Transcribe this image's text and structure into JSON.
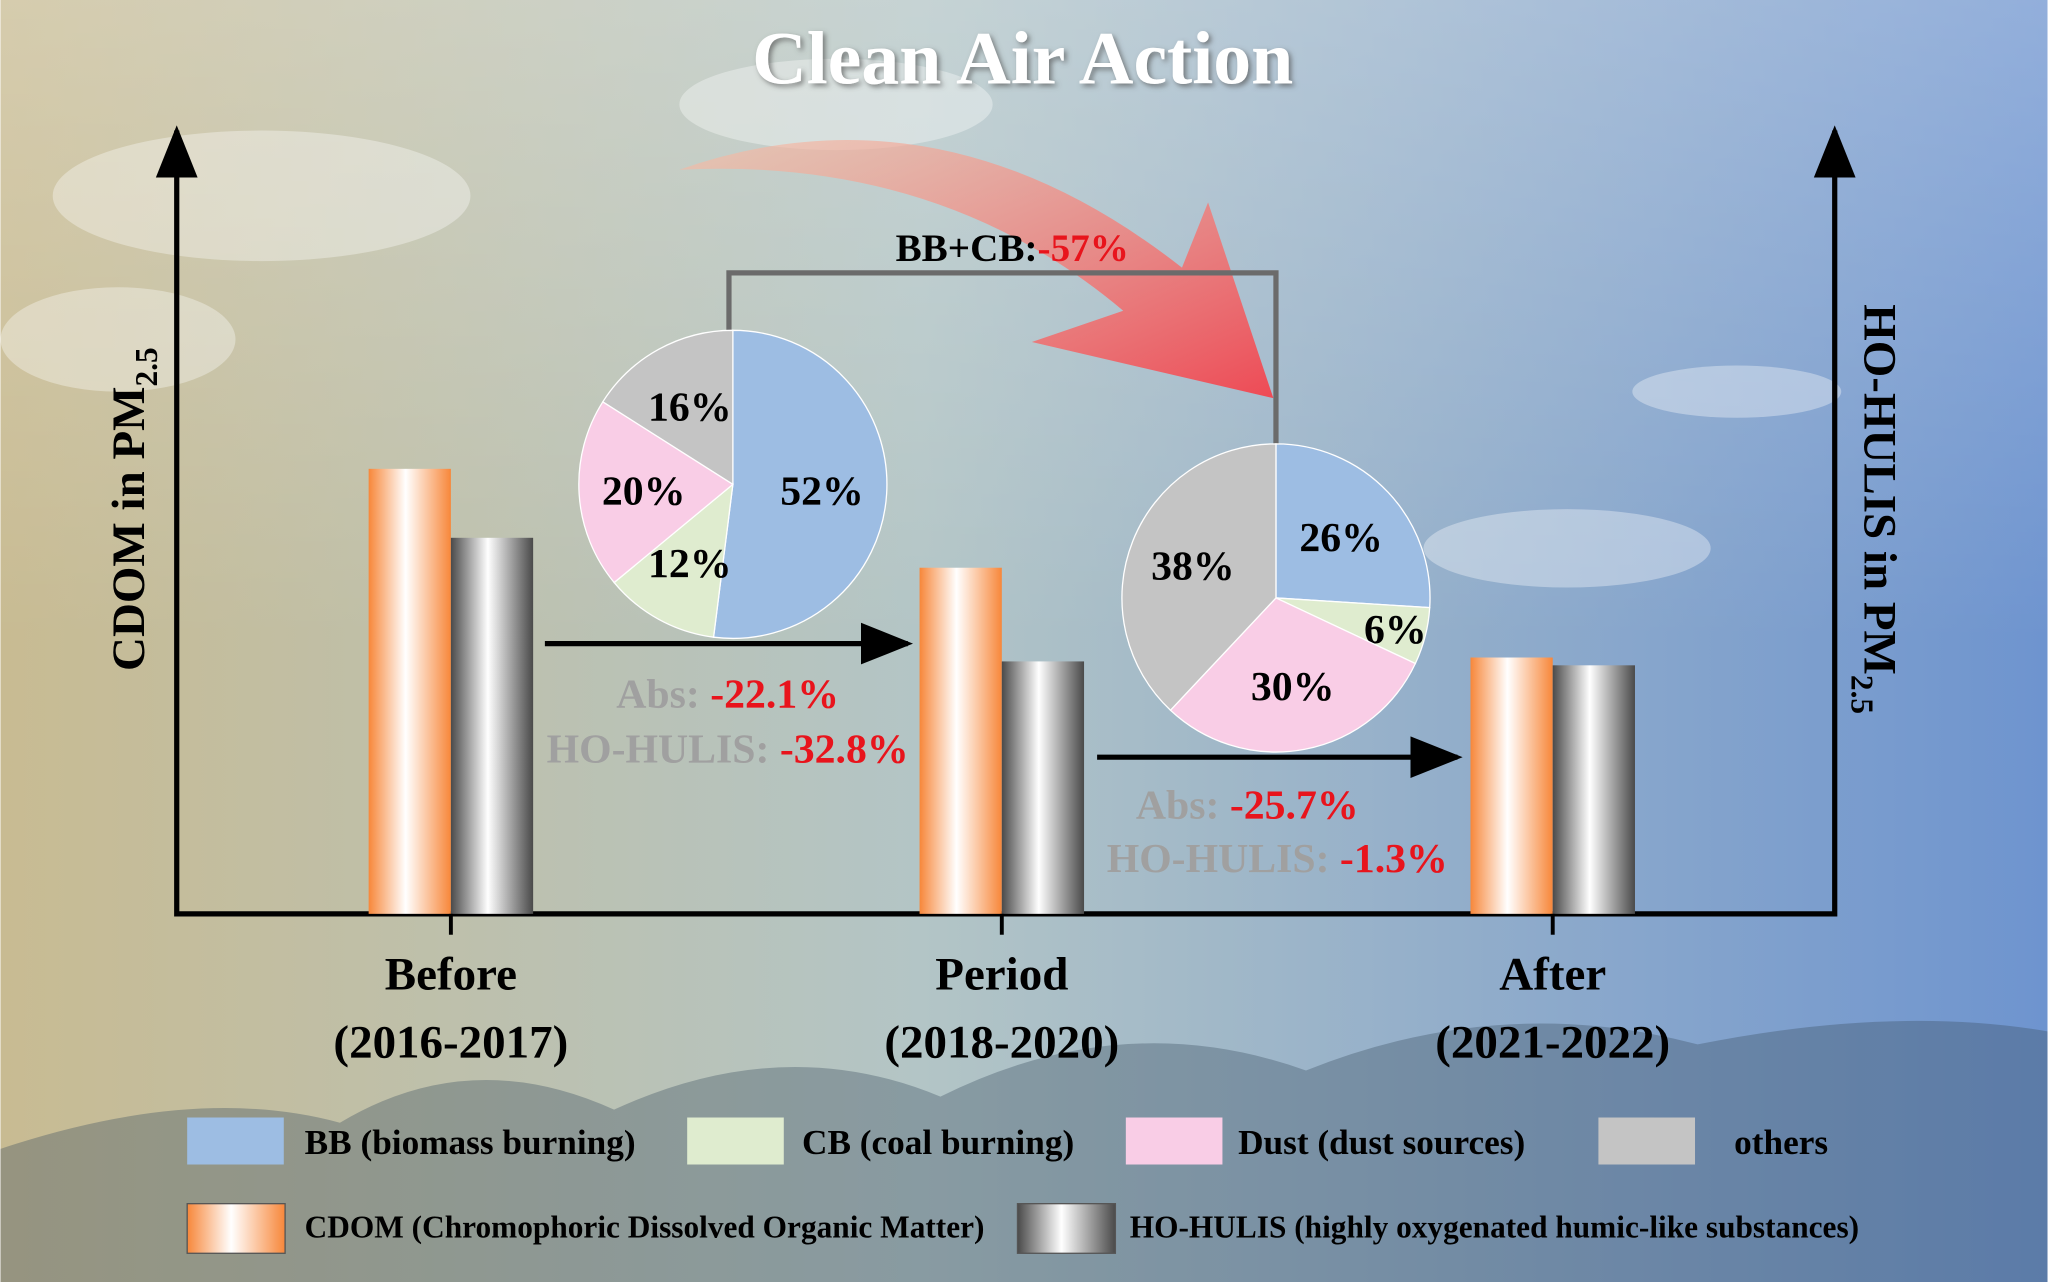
{
  "chart_data": [
    {
      "type": "bar",
      "title": "Clean Air Action",
      "categories": [
        "Before",
        "Period",
        "After"
      ],
      "category_periods": [
        "(2016-2017)",
        "(2018-2020)",
        "(2021-2022)"
      ],
      "ylabel": "CDOM in PM",
      "ylabel_sub": "2.5",
      "y2label": "HO-HULIS  in PM",
      "y2label_sub": "2.5",
      "ylim": [
        0,
        610
      ],
      "y2lim": [
        0,
        610
      ],
      "series": [
        {
          "name": "CDOM (Chromophoric Dissolved Organic Matter)",
          "color": "#f7873a",
          "values": [
            342,
            266,
            197
          ]
        },
        {
          "name": "HO-HULIS (highly oxygenated humic-like substances)",
          "color": "#4a4a4a",
          "axis": "y2",
          "values": [
            289,
            194,
            191
          ]
        }
      ],
      "annotations": [
        {
          "label": "BB+CB:",
          "value": "-57%"
        },
        {
          "label": "Abs:",
          "value": "-22.1%"
        },
        {
          "label": "HO-HULIS:",
          "value": "-32.8%"
        },
        {
          "label": "Abs:",
          "value": "-25.7%"
        },
        {
          "label": "HO-HULIS:",
          "value": "-1.3%"
        }
      ]
    },
    {
      "type": "pie",
      "categories": [
        "BB (biomass burning)",
        "CB (coal burning)",
        "Dust (dust sources)",
        "others"
      ],
      "colors": [
        "#9dbde3",
        "#dfeccf",
        "#f9cde6",
        "#c4c4c4"
      ],
      "values": [
        52,
        12,
        20,
        16
      ],
      "value_labels": [
        "52%",
        "12%",
        "20%",
        "16%"
      ]
    },
    {
      "type": "pie",
      "colors": [
        "#9dbde3",
        "#dfeccf",
        "#f9cde6",
        "#c4c4c4"
      ],
      "values": [
        26,
        6,
        30,
        38
      ],
      "value_labels": [
        "26%",
        "6%",
        "30%",
        "38%"
      ]
    }
  ]
}
